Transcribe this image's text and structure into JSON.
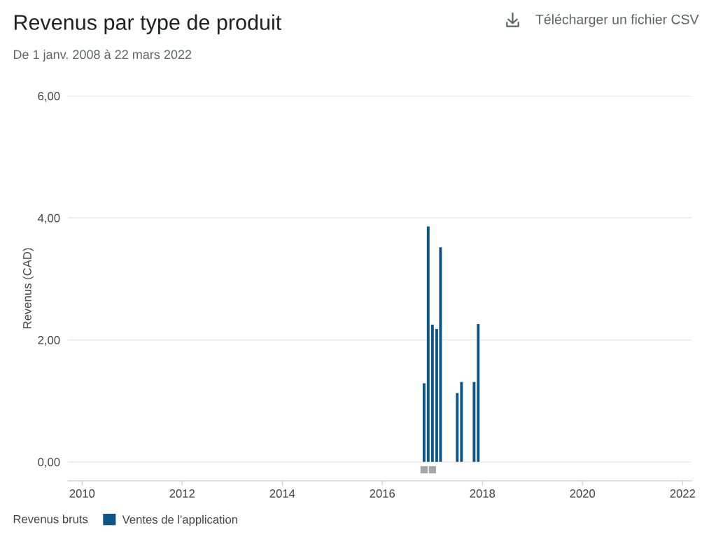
{
  "chart_data": {
    "type": "bar",
    "title": "Revenus par type de produit",
    "subtitle": "De 1 janv. 2008 à 22 mars 2022",
    "ylabel": "Revenus (CAD)",
    "legend_title": "Revenus bruts",
    "annotations": [
      "Télécharger un fichier CSV"
    ],
    "x": [
      "2016-11",
      "2016-12",
      "2017-01",
      "2017-02",
      "2017-03",
      "2017-07",
      "2017-08",
      "2017-11",
      "2017-12"
    ],
    "series": [
      {
        "name": "Ventes de l'application",
        "color": "#0b5686",
        "values": [
          1.29,
          3.86,
          2.25,
          2.18,
          3.52,
          1.13,
          1.31,
          1.31,
          2.26
        ]
      },
      {
        "type": "scatter",
        "color": "#a6a6a6",
        "marker": "square",
        "x": [
          "2016-11",
          "2017-01"
        ],
        "values": [
          -0.13,
          -0.13
        ]
      }
    ],
    "xlim": [
      "2009-09-20",
      "2022-03-08"
    ],
    "xticks": [
      "2010",
      "2012",
      "2014",
      "2016",
      "2018",
      "2020",
      "2022"
    ],
    "ylim": [
      -0.31,
      6
    ],
    "yticks": [
      {
        "value": 0,
        "label": "0,00"
      },
      {
        "value": 2,
        "label": "2,00"
      },
      {
        "value": 4,
        "label": "4,00"
      },
      {
        "value": 6,
        "label": "6,00"
      }
    ],
    "grid": "y",
    "legend": "bottom left"
  }
}
